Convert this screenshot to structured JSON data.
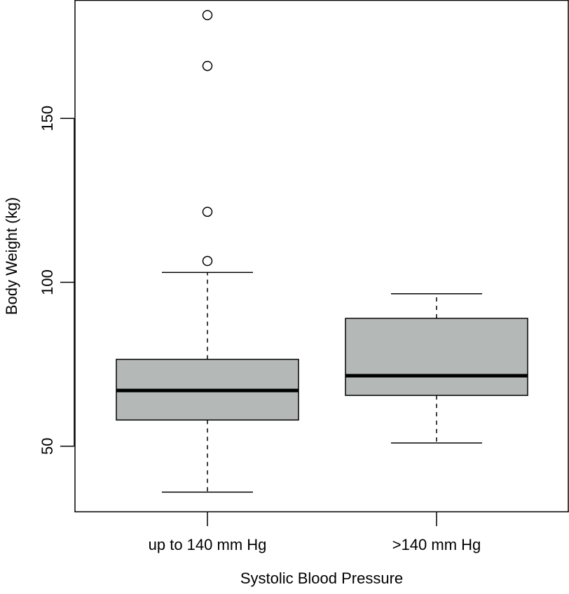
{
  "chart_data": {
    "type": "box",
    "title": "",
    "xlabel": "Systolic Blood Pressure",
    "ylabel": "Body Weight (kg)",
    "ylim": [
      30,
      186
    ],
    "yticks": [
      50,
      100,
      150
    ],
    "yticklabels": [
      "50",
      "100",
      "150"
    ],
    "box_color": "#b4b9b8",
    "categories": [
      "up to 140 mm Hg",
      ">140 mm Hg"
    ],
    "boxes": [
      {
        "name": "up to 140 mm Hg",
        "whisker_low": 36,
        "q1": 58,
        "median": 67,
        "q3": 76.5,
        "whisker_high": 103,
        "outliers": [
          106.5,
          121.5,
          166,
          181.5
        ]
      },
      {
        "name": ">140 mm Hg",
        "whisker_low": 51,
        "q1": 65.5,
        "median": 71.5,
        "q3": 89,
        "whisker_high": 96.5,
        "outliers": []
      }
    ]
  }
}
